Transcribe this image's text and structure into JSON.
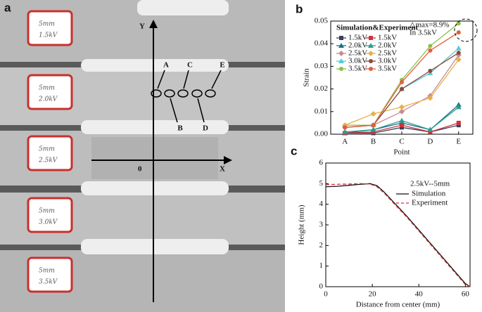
{
  "photo": {
    "panel": "a",
    "axis_y": "Y",
    "axis_x": "X",
    "origin": "0",
    "points": [
      "A",
      "B",
      "C",
      "D",
      "E"
    ],
    "samples": [
      {
        "size": "5mm",
        "voltage": "1.5kV"
      },
      {
        "size": "5mm",
        "voltage": "2.0kV"
      },
      {
        "size": "5mm",
        "voltage": "2.5kV"
      },
      {
        "size": "5mm",
        "voltage": "3.0kV"
      },
      {
        "size": "5mm",
        "voltage": "3.5kV"
      }
    ]
  },
  "chart_data": [
    {
      "type": "line",
      "panel": "b",
      "x_label": "Point",
      "y_label": "Strain",
      "legend_title": "Simulation&Experiment",
      "annotation": [
        "△max=8.9%",
        "In 3.5kV"
      ],
      "categories": [
        "A",
        "B",
        "C",
        "D",
        "E"
      ],
      "ylim": [
        0,
        0.05
      ],
      "yticks": [
        {
          "value": 0,
          "label": "0.00"
        },
        {
          "value": 0.01,
          "label": "0.01"
        },
        {
          "value": 0.02,
          "label": "0.02"
        },
        {
          "value": 0.03,
          "label": "0.03"
        },
        {
          "value": 0.04,
          "label": "0.04"
        },
        {
          "value": 0.05,
          "label": "0.05"
        }
      ],
      "series": [
        {
          "name": "1.5kV",
          "color": "#3b3f5c",
          "marker": "square",
          "values": [
            0.0005,
            0.0005,
            0.003,
            0.001,
            0.004
          ]
        },
        {
          "name": "2.0kV",
          "color": "#1f6f8b",
          "marker": "triangle",
          "values": [
            0.0005,
            0.002,
            0.005,
            0.002,
            0.013
          ]
        },
        {
          "name": "2.5kV",
          "color": "#c98a9a",
          "marker": "diamond",
          "values": [
            0.003,
            0.004,
            0.01,
            0.017,
            0.035
          ]
        },
        {
          "name": "3.0kV",
          "color": "#5bc8d8",
          "marker": "triangle",
          "values": [
            0.004,
            0.004,
            0.02,
            0.027,
            0.038
          ]
        },
        {
          "name": "3.5kV",
          "color": "#8cbf4a",
          "marker": "circle",
          "values": [
            0.004,
            0.004,
            0.024,
            0.039,
            0.049
          ]
        },
        {
          "name": "1.5kV",
          "color": "#d0313a",
          "marker": "square",
          "values": [
            0.0005,
            0.001,
            0.004,
            0.001,
            0.005
          ]
        },
        {
          "name": "2.0kV",
          "color": "#2a9d8f",
          "marker": "triangle",
          "values": [
            0.001,
            0.002,
            0.006,
            0.002,
            0.012
          ]
        },
        {
          "name": "2.5kV",
          "color": "#e8b04a",
          "marker": "diamond",
          "values": [
            0.004,
            0.009,
            0.012,
            0.016,
            0.033
          ]
        },
        {
          "name": "3.0kV",
          "color": "#8b4a3a",
          "marker": "circle",
          "values": [
            0.003,
            0.004,
            0.02,
            0.028,
            0.036
          ]
        },
        {
          "name": "3.5kV",
          "color": "#e0603a",
          "marker": "circle",
          "values": [
            0.003,
            0.004,
            0.023,
            0.037,
            0.045
          ]
        }
      ]
    },
    {
      "type": "line",
      "panel": "c",
      "x_label": "Distance from center (mm)",
      "y_label": "Height (mm)",
      "legend_title": "2.5kV--5mm",
      "x": [
        0,
        5,
        10,
        15,
        19,
        22,
        25,
        30,
        35,
        40,
        45,
        50,
        55,
        60,
        62
      ],
      "xlim": [
        0,
        62
      ],
      "xticks": [
        0,
        20,
        40,
        60
      ],
      "ylim": [
        0,
        6
      ],
      "yticks": [
        0,
        1,
        2,
        3,
        4,
        5,
        6
      ],
      "series": [
        {
          "name": "Simulation",
          "color": "#111111",
          "dash": "solid",
          "values": [
            4.85,
            4.87,
            4.92,
            4.97,
            5.0,
            4.9,
            4.6,
            4.0,
            3.4,
            2.75,
            2.1,
            1.45,
            0.8,
            0.15,
            0
          ]
        },
        {
          "name": "Experiment",
          "color": "#d0313a",
          "dash": "dashed",
          "values": [
            4.95,
            4.97,
            4.98,
            5.0,
            4.98,
            4.85,
            4.55,
            3.95,
            3.35,
            2.7,
            2.05,
            1.4,
            0.75,
            0.1,
            0
          ]
        }
      ]
    }
  ]
}
